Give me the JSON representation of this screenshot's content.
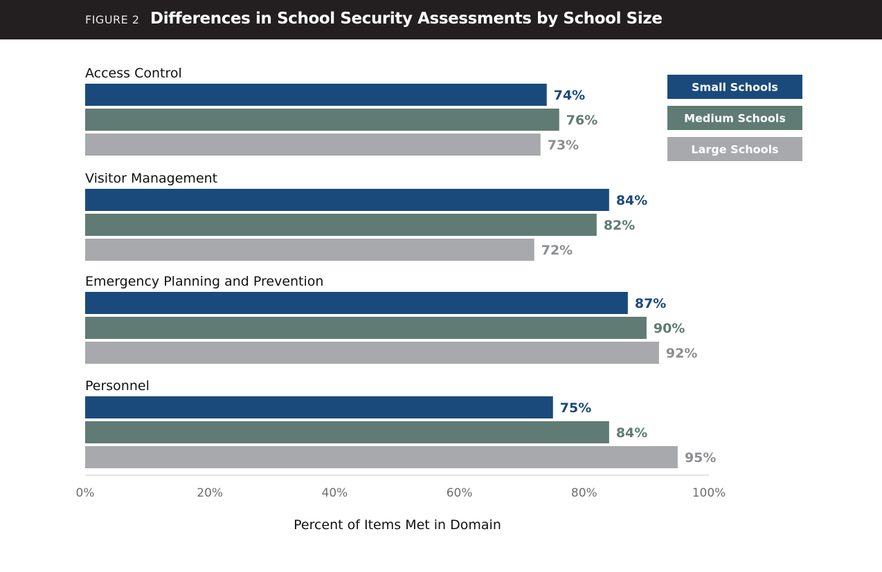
{
  "figure": {
    "label": "FIGURE 2",
    "title": "Differences in School Security Assessments by School Size"
  },
  "colors": {
    "header_bg": "#231f20",
    "small": "#1a4a7c",
    "medium": "#5f7b73",
    "large": "#a7a9ac",
    "large_text": "#8c8e91"
  },
  "chart_data": {
    "type": "bar",
    "orientation": "horizontal",
    "title": "Differences in School Security Assessments by School Size",
    "categories": [
      "Access Control",
      "Visitor Management",
      "Emergency Planning and Prevention",
      "Personnel"
    ],
    "series": [
      {
        "name": "Small Schools",
        "values": [
          74,
          84,
          87,
          75
        ],
        "color": "#1a4a7c",
        "labels": [
          "74%",
          "84%",
          "87%",
          "75%"
        ]
      },
      {
        "name": "Medium Schools",
        "values": [
          76,
          82,
          90,
          84
        ],
        "color": "#5f7b73",
        "labels": [
          "76%",
          "82%",
          "90%",
          "84%"
        ]
      },
      {
        "name": "Large Schools",
        "values": [
          73,
          72,
          92,
          95
        ],
        "color": "#a7a9ac",
        "labels": [
          "73%",
          "72%",
          "92%",
          "95%"
        ]
      }
    ],
    "xlabel": "Percent of Items Met in Domain",
    "ylabel": "",
    "xlim": [
      0,
      100
    ],
    "ticks": [
      0,
      20,
      40,
      60,
      80,
      100
    ],
    "tick_labels": [
      "0%",
      "20%",
      "40%",
      "60%",
      "80%",
      "100%"
    ],
    "legend": "top-right",
    "grid": false
  }
}
